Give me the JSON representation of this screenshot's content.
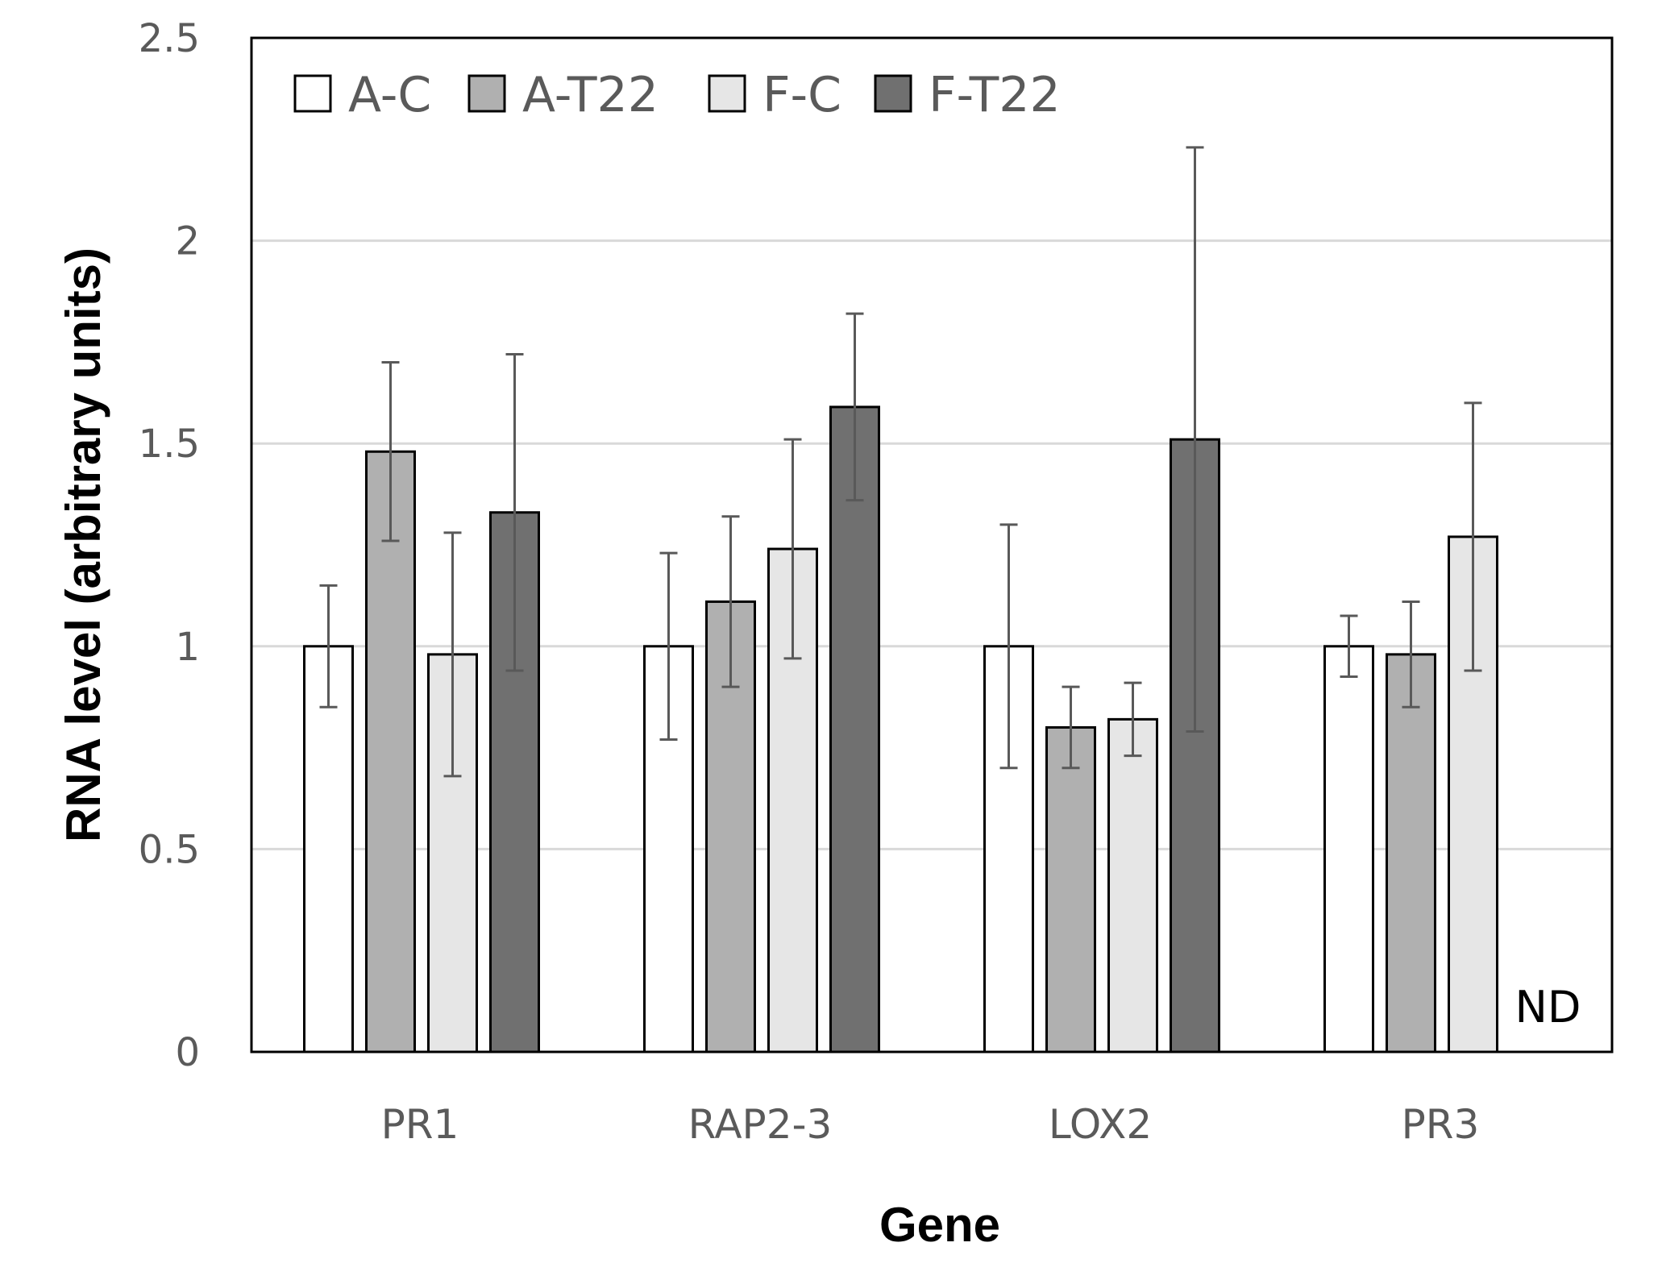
{
  "chart_data": {
    "type": "bar",
    "title": "",
    "xlabel": "Gene",
    "ylabel": "RNA level (arbitrary units)",
    "ylim": [
      0,
      2.5
    ],
    "yticks": [
      "0",
      "0.5",
      "1",
      "1.5",
      "2",
      "2.5"
    ],
    "categories": [
      "PR1",
      "RAP2-3",
      "LOX2",
      "PR3"
    ],
    "grid": true,
    "legend_position": "top-left",
    "series": [
      {
        "name": "A-C",
        "color": "#ffffff",
        "values": [
          1.0,
          1.0,
          1.0,
          1.0
        ],
        "errors": [
          0.15,
          0.23,
          0.3,
          0.075
        ]
      },
      {
        "name": "A-T22",
        "color": "#b0b0b0",
        "values": [
          1.48,
          1.11,
          0.8,
          0.98
        ],
        "errors": [
          0.22,
          0.21,
          0.1,
          0.13
        ]
      },
      {
        "name": "F-C",
        "color": "#e6e6e6",
        "values": [
          0.98,
          1.24,
          0.82,
          1.27
        ],
        "errors": [
          0.3,
          0.27,
          0.09,
          0.33
        ]
      },
      {
        "name": "F-T22",
        "color": "#707070",
        "values": [
          1.33,
          1.59,
          1.51,
          null
        ],
        "errors": [
          0.39,
          0.23,
          0.72,
          null
        ]
      }
    ],
    "annotations": [
      {
        "text": "ND",
        "category": "PR3",
        "series": "F-T22"
      }
    ]
  }
}
